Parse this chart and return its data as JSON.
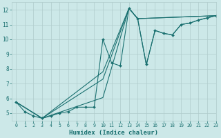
{
  "title": "",
  "xlabel": "Humidex (Indice chaleur)",
  "bg_color": "#cce8e8",
  "line_color": "#1a7070",
  "grid_color": "#b0cccc",
  "xlim": [
    -0.5,
    23
  ],
  "ylim": [
    4.5,
    12.5
  ],
  "yticks": [
    5,
    6,
    7,
    8,
    9,
    10,
    11,
    12
  ],
  "xticks": [
    0,
    1,
    2,
    3,
    4,
    5,
    6,
    7,
    8,
    9,
    10,
    11,
    12,
    13,
    14,
    15,
    16,
    17,
    18,
    19,
    20,
    21,
    22,
    23
  ],
  "series": [
    {
      "x": [
        0,
        1,
        2,
        3,
        4,
        5,
        6,
        7,
        8,
        9,
        10,
        11,
        12,
        13,
        14,
        15,
        16,
        17,
        18,
        19,
        20,
        21,
        22,
        23
      ],
      "y": [
        5.75,
        5.1,
        4.8,
        4.65,
        4.8,
        5.0,
        5.1,
        5.4,
        5.4,
        5.4,
        10.0,
        8.4,
        8.2,
        12.1,
        11.4,
        8.3,
        10.6,
        10.4,
        10.3,
        11.0,
        11.1,
        11.3,
        11.45,
        11.6
      ],
      "marker": true
    },
    {
      "x": [
        0,
        3,
        10,
        13,
        14,
        23
      ],
      "y": [
        5.75,
        4.65,
        6.05,
        12.1,
        11.4,
        11.6
      ],
      "marker": false
    },
    {
      "x": [
        0,
        3,
        10,
        13,
        14,
        23
      ],
      "y": [
        5.75,
        4.65,
        7.3,
        12.1,
        11.4,
        11.6
      ],
      "marker": false
    },
    {
      "x": [
        0,
        3,
        10,
        13,
        14,
        15,
        16,
        17,
        18,
        19,
        20,
        21,
        22,
        23
      ],
      "y": [
        5.75,
        4.65,
        7.8,
        12.1,
        11.4,
        8.25,
        10.6,
        10.4,
        10.3,
        11.0,
        11.1,
        11.3,
        11.45,
        11.6
      ],
      "marker": false
    }
  ]
}
